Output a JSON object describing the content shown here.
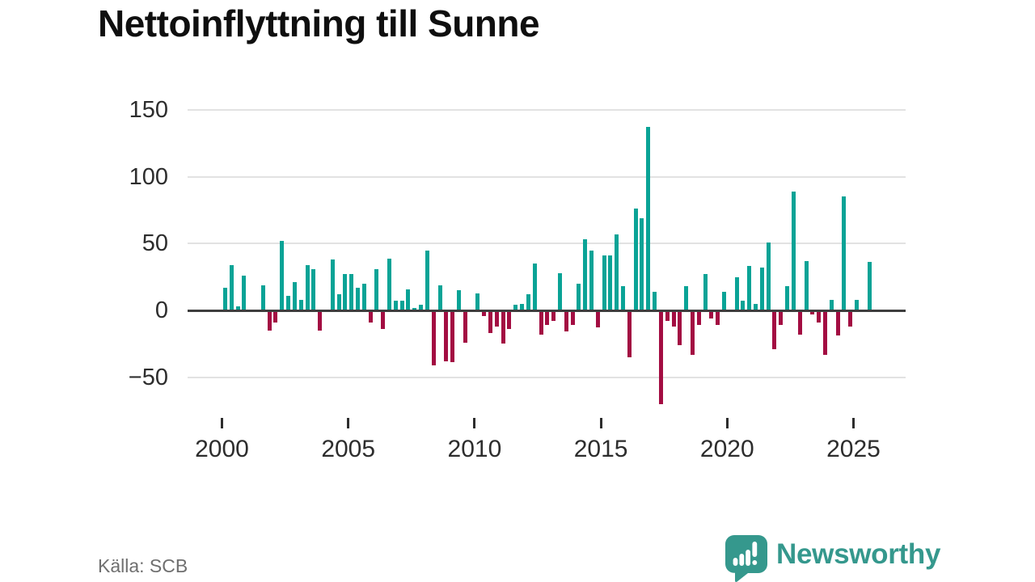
{
  "title": "Nettoinflyttning till Sunne",
  "source": {
    "label": "Källa: SCB"
  },
  "branding": {
    "name": "Newsworthy",
    "logo_icon": "speech-bubble-bar-chart-exclamation",
    "color": "#35988d"
  },
  "chart_data": {
    "type": "bar",
    "title": "Nettoinflyttning till Sunne",
    "frequency": "quarterly",
    "x_start": {
      "year": 2000,
      "quarter": 1
    },
    "x_tick_years": [
      2000,
      2005,
      2010,
      2015,
      2020,
      2025
    ],
    "y_ticks": [
      {
        "value": 150,
        "label": "150"
      },
      {
        "value": 100,
        "label": "100"
      },
      {
        "value": 50,
        "label": "50"
      },
      {
        "value": 0,
        "label": "0"
      },
      {
        "value": -50,
        "label": "−50"
      }
    ],
    "ylim": [
      -78,
      155
    ],
    "grid": true,
    "legend": false,
    "colors": {
      "positive": "#0aa396",
      "negative": "#a30d42"
    },
    "series": [
      {
        "name": "Nettoinflyttning per kvartal",
        "values": [
          17,
          34,
          3,
          26,
          0,
          0,
          19,
          -15,
          -9,
          52,
          11,
          21,
          8,
          34,
          31,
          -15,
          0,
          38,
          12,
          27,
          27,
          17,
          20,
          -9,
          31,
          -14,
          39,
          7,
          7,
          16,
          2,
          4,
          45,
          -41,
          19,
          -38,
          -39,
          15,
          -24,
          0,
          13,
          -4,
          -17,
          -12,
          -25,
          -14,
          4,
          5,
          12,
          35,
          -18,
          -11,
          -8,
          28,
          -16,
          -11,
          20,
          53,
          45,
          -13,
          41,
          41,
          57,
          18,
          -35,
          76,
          69,
          137,
          14,
          -70,
          -8,
          -12,
          -26,
          18,
          -33,
          -11,
          27,
          -6,
          -11,
          14,
          0,
          25,
          7,
          33,
          5,
          32,
          51,
          -29,
          -11,
          18,
          89,
          -18,
          37,
          -3,
          -9,
          -33,
          8,
          -19,
          85,
          -12,
          8,
          0,
          36
        ]
      }
    ]
  }
}
